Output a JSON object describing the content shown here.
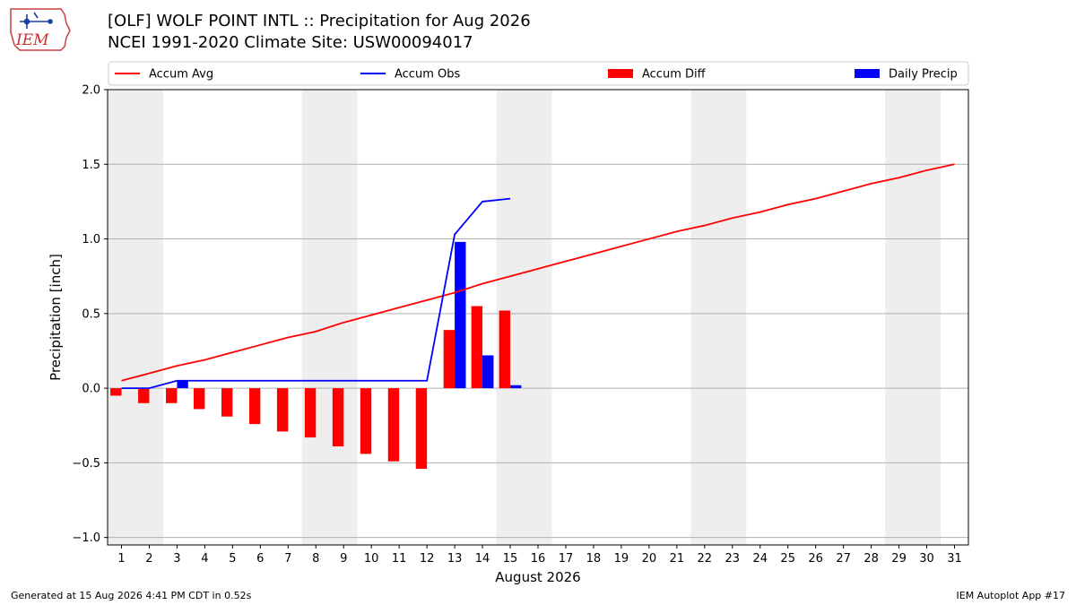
{
  "header": {
    "logo_text": "IEM",
    "title_line1": "[OLF] WOLF POINT INTL :: Precipitation for Aug 2026",
    "title_line2": "NCEI 1991-2020 Climate Site: USW00094017"
  },
  "footer": {
    "generated": "Generated at 15 Aug 2026 4:41 PM CDT in 0.52s",
    "app": "IEM Autoplot App #17"
  },
  "colors": {
    "avg": "#ff0000",
    "obs": "#0000ff",
    "diff": "#ff0000",
    "daily": "#0000ff",
    "weekend_band": "#eeeeee",
    "grid": "#b0b0b0"
  },
  "chart_data": {
    "type": "bar",
    "xlabel": "August 2026",
    "ylabel": "Precipitation [inch]",
    "ylim": [
      -1.05,
      2.0
    ],
    "yticks": [
      -1.0,
      -0.5,
      0.0,
      0.5,
      1.0,
      1.5,
      2.0
    ],
    "ytick_labels": [
      "−1.0",
      "−0.5",
      "0.0",
      "0.5",
      "1.0",
      "1.5",
      "2.0"
    ],
    "xlim": [
      0.5,
      31.5
    ],
    "x": [
      1,
      2,
      3,
      4,
      5,
      6,
      7,
      8,
      9,
      10,
      11,
      12,
      13,
      14,
      15,
      16,
      17,
      18,
      19,
      20,
      21,
      22,
      23,
      24,
      25,
      26,
      27,
      28,
      29,
      30,
      31
    ],
    "grid": "horizontal",
    "legend_position": "top",
    "weekend_bands": [
      [
        0.5,
        2.5
      ],
      [
        7.5,
        9.5
      ],
      [
        14.5,
        16.5
      ],
      [
        21.5,
        23.5
      ],
      [
        28.5,
        30.5
      ]
    ],
    "series": [
      {
        "name": "Accum Avg",
        "kind": "line",
        "x": [
          1,
          2,
          3,
          4,
          5,
          6,
          7,
          8,
          9,
          10,
          11,
          12,
          13,
          14,
          15,
          16,
          17,
          18,
          19,
          20,
          21,
          22,
          23,
          24,
          25,
          26,
          27,
          28,
          29,
          30,
          31
        ],
        "values": [
          0.05,
          0.1,
          0.15,
          0.19,
          0.24,
          0.29,
          0.34,
          0.38,
          0.44,
          0.49,
          0.54,
          0.59,
          0.64,
          0.7,
          0.75,
          0.8,
          0.85,
          0.9,
          0.95,
          1.0,
          1.05,
          1.09,
          1.14,
          1.18,
          1.23,
          1.27,
          1.32,
          1.37,
          1.41,
          1.46,
          1.5
        ]
      },
      {
        "name": "Accum Obs",
        "kind": "line",
        "x": [
          1,
          2,
          3,
          4,
          5,
          6,
          7,
          8,
          9,
          10,
          11,
          12,
          13,
          14,
          15
        ],
        "values": [
          0.0,
          0.0,
          0.05,
          0.05,
          0.05,
          0.05,
          0.05,
          0.05,
          0.05,
          0.05,
          0.05,
          0.05,
          1.03,
          1.25,
          1.27
        ]
      },
      {
        "name": "Accum Diff",
        "kind": "bar",
        "x": [
          1,
          2,
          3,
          4,
          5,
          6,
          7,
          8,
          9,
          10,
          11,
          12,
          13,
          14,
          15
        ],
        "values": [
          -0.05,
          -0.1,
          -0.1,
          -0.14,
          -0.19,
          -0.24,
          -0.29,
          -0.33,
          -0.39,
          -0.44,
          -0.49,
          -0.54,
          0.39,
          0.55,
          0.52
        ]
      },
      {
        "name": "Daily Precip",
        "kind": "bar",
        "x": [
          1,
          2,
          3,
          4,
          5,
          6,
          7,
          8,
          9,
          10,
          11,
          12,
          13,
          14,
          15
        ],
        "values": [
          0.0,
          0.0,
          0.05,
          0.0,
          0.0,
          0.0,
          0.0,
          0.0,
          0.0,
          0.0,
          0.0,
          0.0,
          0.98,
          0.22,
          0.02
        ]
      }
    ]
  }
}
